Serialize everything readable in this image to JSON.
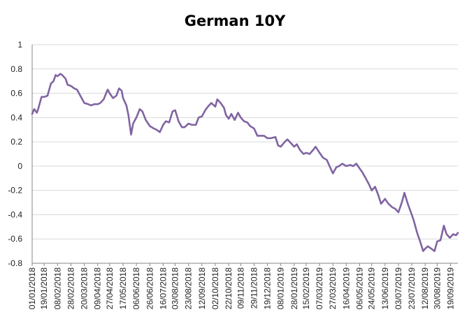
{
  "chart_data": {
    "type": "line",
    "title": "German 10Y",
    "xlabel": "",
    "ylabel": "",
    "ylim": [
      -0.8,
      1.0
    ],
    "yticks": [
      "1",
      "0.8",
      "0.6",
      "0.4",
      "0.2",
      "0",
      "-0.2",
      "-0.4",
      "-0.6",
      "-0.8"
    ],
    "ytick_values": [
      1,
      0.8,
      0.6,
      0.4,
      0.2,
      0,
      -0.2,
      -0.4,
      -0.6,
      -0.8
    ],
    "xlim": [
      "2018-01-01",
      "2019-09-30"
    ],
    "grid": "horizontal",
    "legend": "none",
    "line_color": "#8064a2",
    "x_tick_labels": [
      "01/01/2018",
      "19/01/2018",
      "08/02/2018",
      "28/02/2018",
      "20/03/2018",
      "09/04/2018",
      "27/04/2018",
      "17/05/2018",
      "06/06/2018",
      "26/06/2018",
      "16/07/2018",
      "03/08/2018",
      "23/08/2018",
      "12/09/2018",
      "02/10/2018",
      "22/10/2018",
      "09/11/2018",
      "29/11/2018",
      "19/12/2018",
      "08/01/2019",
      "28/01/2019",
      "15/02/2019",
      "07/03/2019",
      "27/03/2019",
      "16/04/2019",
      "06/05/2019",
      "24/05/2019",
      "13/06/2019",
      "03/07/2019",
      "23/07/2019",
      "12/08/2019",
      "30/08/2019",
      "19/09/2019"
    ],
    "x_tick_dates": [
      "2018-01-01",
      "2018-01-19",
      "2018-02-08",
      "2018-02-28",
      "2018-03-20",
      "2018-04-09",
      "2018-04-27",
      "2018-05-17",
      "2018-06-06",
      "2018-06-26",
      "2018-07-16",
      "2018-08-03",
      "2018-08-23",
      "2018-09-12",
      "2018-10-02",
      "2018-10-22",
      "2018-11-09",
      "2018-11-29",
      "2018-12-19",
      "2019-01-08",
      "2019-01-28",
      "2019-02-15",
      "2019-03-07",
      "2019-03-27",
      "2019-04-16",
      "2019-05-06",
      "2019-05-24",
      "2019-06-13",
      "2019-07-03",
      "2019-07-23",
      "2019-08-12",
      "2019-08-30",
      "2019-09-19"
    ],
    "series": [
      {
        "x": [
          "2018-01-01",
          "2018-01-04",
          "2018-01-08",
          "2018-01-10",
          "2018-01-15",
          "2018-01-19",
          "2018-01-24",
          "2018-01-29",
          "2018-02-02",
          "2018-02-05",
          "2018-02-08",
          "2018-02-12",
          "2018-02-15",
          "2018-02-20",
          "2018-02-23",
          "2018-02-28",
          "2018-03-05",
          "2018-03-09",
          "2018-03-15",
          "2018-03-20",
          "2018-03-26",
          "2018-03-30",
          "2018-04-04",
          "2018-04-09",
          "2018-04-13",
          "2018-04-18",
          "2018-04-24",
          "2018-04-27",
          "2018-05-02",
          "2018-05-07",
          "2018-05-11",
          "2018-05-15",
          "2018-05-17",
          "2018-05-22",
          "2018-05-25",
          "2018-05-29",
          "2018-06-01",
          "2018-06-06",
          "2018-06-11",
          "2018-06-15",
          "2018-06-20",
          "2018-06-26",
          "2018-07-02",
          "2018-07-06",
          "2018-07-11",
          "2018-07-16",
          "2018-07-20",
          "2018-07-25",
          "2018-07-30",
          "2018-08-03",
          "2018-08-08",
          "2018-08-13",
          "2018-08-17",
          "2018-08-23",
          "2018-08-28",
          "2018-09-03",
          "2018-09-07",
          "2018-09-12",
          "2018-09-17",
          "2018-09-21",
          "2018-09-26",
          "2018-10-02",
          "2018-10-05",
          "2018-10-10",
          "2018-10-15",
          "2018-10-18",
          "2018-10-22",
          "2018-10-26",
          "2018-10-31",
          "2018-11-05",
          "2018-11-09",
          "2018-11-14",
          "2018-11-19",
          "2018-11-23",
          "2018-11-29",
          "2018-12-04",
          "2018-12-10",
          "2018-12-14",
          "2018-12-19",
          "2018-12-24",
          "2018-12-31",
          "2019-01-04",
          "2019-01-08",
          "2019-01-14",
          "2019-01-18",
          "2019-01-23",
          "2019-01-28",
          "2019-02-01",
          "2019-02-06",
          "2019-02-11",
          "2019-02-15",
          "2019-02-20",
          "2019-02-25",
          "2019-03-01",
          "2019-03-07",
          "2019-03-12",
          "2019-03-18",
          "2019-03-22",
          "2019-03-27",
          "2019-04-01",
          "2019-04-05",
          "2019-04-10",
          "2019-04-16",
          "2019-04-22",
          "2019-04-26",
          "2019-05-01",
          "2019-05-06",
          "2019-05-10",
          "2019-05-15",
          "2019-05-20",
          "2019-05-24",
          "2019-05-29",
          "2019-06-03",
          "2019-06-07",
          "2019-06-13",
          "2019-06-18",
          "2019-06-24",
          "2019-06-28",
          "2019-07-03",
          "2019-07-08",
          "2019-07-12",
          "2019-07-17",
          "2019-07-23",
          "2019-07-26",
          "2019-07-31",
          "2019-08-05",
          "2019-08-09",
          "2019-08-12",
          "2019-08-16",
          "2019-08-21",
          "2019-08-26",
          "2019-08-30",
          "2019-09-04",
          "2019-09-09",
          "2019-09-13",
          "2019-09-18",
          "2019-09-23",
          "2019-09-27",
          "2019-09-30"
        ],
        "values": [
          0.43,
          0.47,
          0.44,
          0.47,
          0.57,
          0.57,
          0.58,
          0.68,
          0.7,
          0.75,
          0.74,
          0.76,
          0.75,
          0.72,
          0.67,
          0.66,
          0.64,
          0.63,
          0.57,
          0.52,
          0.51,
          0.5,
          0.51,
          0.51,
          0.52,
          0.55,
          0.63,
          0.6,
          0.56,
          0.58,
          0.64,
          0.62,
          0.56,
          0.5,
          0.42,
          0.26,
          0.35,
          0.4,
          0.47,
          0.45,
          0.38,
          0.33,
          0.31,
          0.3,
          0.28,
          0.34,
          0.37,
          0.36,
          0.45,
          0.46,
          0.37,
          0.32,
          0.32,
          0.35,
          0.34,
          0.34,
          0.4,
          0.41,
          0.46,
          0.49,
          0.52,
          0.49,
          0.55,
          0.52,
          0.48,
          0.42,
          0.39,
          0.43,
          0.38,
          0.44,
          0.4,
          0.37,
          0.36,
          0.33,
          0.31,
          0.25,
          0.25,
          0.25,
          0.23,
          0.23,
          0.24,
          0.17,
          0.16,
          0.2,
          0.22,
          0.19,
          0.16,
          0.18,
          0.13,
          0.1,
          0.11,
          0.1,
          0.13,
          0.16,
          0.11,
          0.07,
          0.05,
          0.0,
          -0.06,
          -0.01,
          0.0,
          0.02,
          0.0,
          0.01,
          0.0,
          0.02,
          -0.02,
          -0.05,
          -0.1,
          -0.15,
          -0.2,
          -0.17,
          -0.24,
          -0.31,
          -0.27,
          -0.31,
          -0.34,
          -0.35,
          -0.38,
          -0.3,
          -0.22,
          -0.31,
          -0.4,
          -0.45,
          -0.55,
          -0.63,
          -0.7,
          -0.68,
          -0.66,
          -0.68,
          -0.7,
          -0.62,
          -0.61,
          -0.49,
          -0.56,
          -0.59,
          -0.56,
          -0.57,
          -0.55
        ]
      }
    ]
  }
}
